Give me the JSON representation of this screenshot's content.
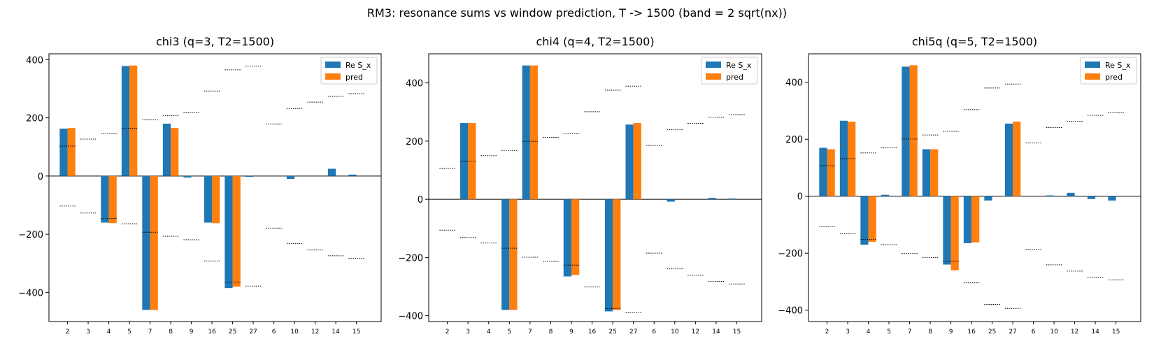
{
  "figure": {
    "suptitle": "RM3: resonance sums vs window prediction, T -> 1500 (band = 2 sqrt(nx))"
  },
  "colors": {
    "re_s_x": "#1f77b4",
    "pred": "#ff7f0e",
    "band": "#000000"
  },
  "chart_data": [
    {
      "type": "bar",
      "title": "chi3 (q=3, T2=1500)",
      "categories": [
        "2",
        "3",
        "4",
        "5",
        "7",
        "8",
        "9",
        "16",
        "25",
        "27",
        "6",
        "10",
        "12",
        "14",
        "15"
      ],
      "ylim": [
        -500,
        420
      ],
      "yticks": [
        -400,
        -200,
        0,
        200,
        400
      ],
      "ytick_labels": [
        "−400",
        "−200",
        "0",
        "200",
        "400"
      ],
      "legend": "top-right",
      "series": [
        {
          "name": "Re S_x",
          "values": [
            163,
            0,
            -160,
            378,
            -460,
            180,
            -5,
            -160,
            -385,
            -3,
            0,
            -10,
            0,
            25,
            5
          ]
        },
        {
          "name": "pred",
          "values": [
            165,
            0,
            -162,
            380,
            -460,
            165,
            0,
            -162,
            -380,
            0,
            0,
            0,
            0,
            0,
            0
          ]
        }
      ],
      "band": [
        103,
        127,
        146,
        164,
        193,
        207,
        219,
        292,
        365,
        378,
        179,
        232,
        254,
        274,
        283
      ]
    },
    {
      "type": "bar",
      "title": "chi4 (q=4, T2=1500)",
      "categories": [
        "2",
        "3",
        "4",
        "5",
        "7",
        "8",
        "9",
        "16",
        "25",
        "27",
        "6",
        "10",
        "12",
        "14",
        "15"
      ],
      "ylim": [
        -420,
        500
      ],
      "yticks": [
        -400,
        -200,
        0,
        200,
        400
      ],
      "ytick_labels": [
        "−400",
        "−200",
        "0",
        "200",
        "400"
      ],
      "legend": "top-right",
      "series": [
        {
          "name": "Re S_x",
          "values": [
            0,
            262,
            0,
            -380,
            460,
            0,
            -265,
            0,
            -385,
            257,
            0,
            -8,
            0,
            5,
            3
          ]
        },
        {
          "name": "pred",
          "values": [
            0,
            262,
            0,
            -380,
            460,
            0,
            -260,
            0,
            -380,
            262,
            0,
            0,
            0,
            0,
            0
          ]
        }
      ],
      "band": [
        106,
        131,
        150,
        168,
        199,
        213,
        226,
        301,
        375,
        389,
        185,
        239,
        261,
        282,
        291
      ]
    },
    {
      "type": "bar",
      "title": "chi5q (q=5, T2=1500)",
      "categories": [
        "2",
        "3",
        "4",
        "5",
        "7",
        "8",
        "9",
        "16",
        "25",
        "27",
        "6",
        "10",
        "12",
        "14",
        "15"
      ],
      "ylim": [
        -440,
        500
      ],
      "yticks": [
        -400,
        -200,
        0,
        200,
        400
      ],
      "ytick_labels": [
        "−400",
        "−200",
        "0",
        "200",
        "400"
      ],
      "legend": "top-right",
      "series": [
        {
          "name": "Re S_x",
          "values": [
            170,
            265,
            -170,
            5,
            455,
            165,
            -240,
            -165,
            -15,
            255,
            0,
            3,
            12,
            -10,
            -15
          ]
        },
        {
          "name": "pred",
          "values": [
            165,
            262,
            -160,
            0,
            460,
            165,
            -260,
            -162,
            0,
            262,
            0,
            0,
            0,
            0,
            0
          ]
        }
      ],
      "band": [
        107,
        132,
        152,
        170,
        201,
        215,
        228,
        304,
        380,
        394,
        187,
        241,
        263,
        284,
        294
      ]
    }
  ]
}
